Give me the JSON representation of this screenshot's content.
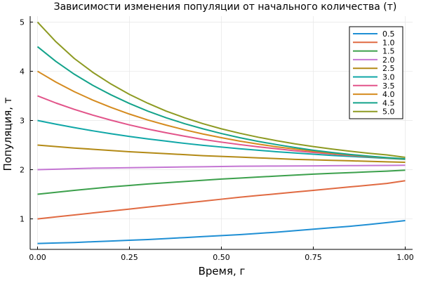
{
  "chart_data": {
    "type": "line",
    "title": "Зависимости изменения популяции от начального количества (т)",
    "xlabel": "Время, г",
    "ylabel": "Популяция, т",
    "xlim": [
      -0.02,
      1.02
    ],
    "ylim": [
      0.38,
      5.12
    ],
    "x_ticks": [
      0.0,
      0.25,
      0.5,
      0.75,
      1.0
    ],
    "x_tick_labels": [
      "0.00",
      "0.25",
      "0.50",
      "0.75",
      "1.00"
    ],
    "y_ticks": [
      1,
      2,
      3,
      4,
      5
    ],
    "y_tick_labels": [
      "1",
      "2",
      "3",
      "4",
      "5"
    ],
    "grid": true,
    "legend_position": "top-right",
    "x": [
      0.0,
      0.05,
      0.1,
      0.15,
      0.2,
      0.25,
      0.3,
      0.35,
      0.4,
      0.45,
      0.5,
      0.55,
      0.6,
      0.65,
      0.7,
      0.75,
      0.8,
      0.85,
      0.9,
      0.95,
      1.0
    ],
    "series": [
      {
        "name": "0.5",
        "color": "#1f8fd4",
        "values": [
          0.5,
          0.51,
          0.52,
          0.535,
          0.55,
          0.565,
          0.58,
          0.6,
          0.62,
          0.64,
          0.66,
          0.68,
          0.705,
          0.73,
          0.76,
          0.79,
          0.82,
          0.85,
          0.885,
          0.925,
          0.965
        ]
      },
      {
        "name": "1.0",
        "color": "#e06a42",
        "values": [
          1.0,
          1.04,
          1.08,
          1.12,
          1.16,
          1.2,
          1.24,
          1.28,
          1.32,
          1.36,
          1.4,
          1.44,
          1.475,
          1.51,
          1.545,
          1.58,
          1.615,
          1.65,
          1.685,
          1.72,
          1.775
        ]
      },
      {
        "name": "1.5",
        "color": "#3ca04c",
        "values": [
          1.5,
          1.54,
          1.58,
          1.615,
          1.65,
          1.68,
          1.71,
          1.735,
          1.76,
          1.785,
          1.81,
          1.83,
          1.85,
          1.87,
          1.89,
          1.91,
          1.925,
          1.94,
          1.955,
          1.97,
          1.99
        ]
      },
      {
        "name": "2.0",
        "color": "#c476d3",
        "values": [
          2.0,
          2.01,
          2.02,
          2.03,
          2.035,
          2.04,
          2.045,
          2.05,
          2.055,
          2.06,
          2.065,
          2.07,
          2.072,
          2.074,
          2.076,
          2.078,
          2.08,
          2.082,
          2.084,
          2.086,
          2.09
        ]
      },
      {
        "name": "2.5",
        "color": "#b38a16",
        "values": [
          2.5,
          2.47,
          2.44,
          2.415,
          2.39,
          2.365,
          2.345,
          2.325,
          2.305,
          2.285,
          2.27,
          2.255,
          2.24,
          2.225,
          2.21,
          2.2,
          2.19,
          2.18,
          2.17,
          2.16,
          2.15
        ]
      },
      {
        "name": "3.0",
        "color": "#10a7a7",
        "values": [
          3.0,
          2.925,
          2.855,
          2.79,
          2.73,
          2.675,
          2.625,
          2.58,
          2.535,
          2.495,
          2.46,
          2.425,
          2.395,
          2.365,
          2.34,
          2.315,
          2.29,
          2.27,
          2.25,
          2.23,
          2.21
        ]
      },
      {
        "name": "3.5",
        "color": "#e2548a",
        "values": [
          3.5,
          3.355,
          3.225,
          3.11,
          3.005,
          2.91,
          2.825,
          2.75,
          2.68,
          2.615,
          2.56,
          2.51,
          2.465,
          2.425,
          2.385,
          2.35,
          2.32,
          2.29,
          2.265,
          2.24,
          2.22
        ]
      },
      {
        "name": "4.0",
        "color": "#d58b1f",
        "values": [
          4.0,
          3.78,
          3.585,
          3.415,
          3.265,
          3.13,
          3.01,
          2.905,
          2.81,
          2.725,
          2.65,
          2.58,
          2.52,
          2.465,
          2.42,
          2.375,
          2.335,
          2.3,
          2.27,
          2.24,
          2.215
        ]
      },
      {
        "name": "4.5",
        "color": "#14a38b",
        "values": [
          4.5,
          4.2,
          3.94,
          3.715,
          3.52,
          3.345,
          3.19,
          3.055,
          2.935,
          2.83,
          2.735,
          2.65,
          2.575,
          2.51,
          2.45,
          2.395,
          2.35,
          2.31,
          2.275,
          2.245,
          2.22
        ]
      },
      {
        "name": "5.0",
        "color": "#8d9a22",
        "values": [
          5.0,
          4.6,
          4.26,
          3.98,
          3.74,
          3.53,
          3.35,
          3.19,
          3.055,
          2.935,
          2.83,
          2.74,
          2.66,
          2.59,
          2.525,
          2.47,
          2.42,
          2.375,
          2.335,
          2.3,
          2.25
        ]
      }
    ]
  }
}
